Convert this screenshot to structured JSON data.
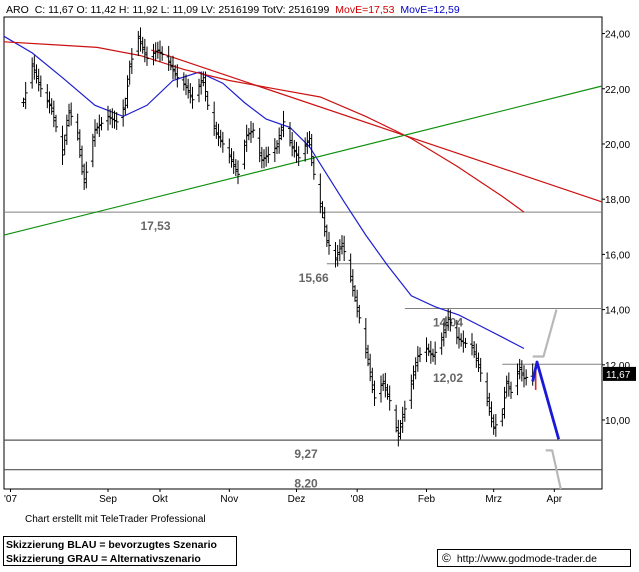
{
  "header": {
    "symbol": "ARO",
    "stats": "C: 11,67 O: 11,42 H: 11,92 L: 11,09 LV: 2516199 TotV: 2516199",
    "ma_long": "MovE=17,53",
    "ma_short": "MovE=12,59",
    "ma_long_color": "#cc0000",
    "ma_short_color": "#0000cc"
  },
  "footer": {
    "credit": "Chart erstellt mit TeleTrader Professional",
    "legend_blue": "Skizzierung BLAU = bevorzugtes Szenario",
    "legend_gray": "Skizzierung GRAU = Alternativszenario",
    "source_symbol": "©",
    "source_url": "http://www.godmode-trader.de"
  },
  "chart_data": {
    "type": "line",
    "title": "ARO",
    "x_ticks": [
      "'07",
      "Sep",
      "Okt",
      "Nov",
      "Dez",
      "'08",
      "Feb",
      "Mrz",
      "Apr"
    ],
    "y_ticks": [
      "10,00",
      "12,00",
      "14,00",
      "16,00",
      "18,00",
      "20,00",
      "22,00",
      "24,00"
    ],
    "ylim": [
      7.5,
      24.6
    ],
    "last_price": 11.67,
    "last_price_label": "11,67",
    "grid": false,
    "price_anchors": [
      [
        "2007-08-02",
        21.5
      ],
      [
        "2007-08-06",
        22.9
      ],
      [
        "2007-08-10",
        22.0
      ],
      [
        "2007-08-15",
        21.3
      ],
      [
        "2007-08-20",
        19.6
      ],
      [
        "2007-08-23",
        21.2
      ],
      [
        "2007-08-27",
        20.4
      ],
      [
        "2007-08-30",
        18.6
      ],
      [
        "2007-09-04",
        20.5
      ],
      [
        "2007-09-10",
        21.0
      ],
      [
        "2007-09-14",
        20.8
      ],
      [
        "2007-09-18",
        21.4
      ],
      [
        "2007-09-20",
        22.8
      ],
      [
        "2007-09-24",
        23.9
      ],
      [
        "2007-09-28",
        23.1
      ],
      [
        "2007-10-03",
        23.4
      ],
      [
        "2007-10-08",
        23.0
      ],
      [
        "2007-10-12",
        22.4
      ],
      [
        "2007-10-16",
        22.1
      ],
      [
        "2007-10-19",
        21.6
      ],
      [
        "2007-10-24",
        22.4
      ],
      [
        "2007-10-26",
        21.4
      ],
      [
        "2007-10-30",
        20.4
      ],
      [
        "2007-11-05",
        19.6
      ],
      [
        "2007-11-09",
        18.9
      ],
      [
        "2007-11-13",
        20.3
      ],
      [
        "2007-11-16",
        20.5
      ],
      [
        "2007-11-20",
        19.4
      ],
      [
        "2007-11-27",
        19.9
      ],
      [
        "2007-11-30",
        20.8
      ],
      [
        "2007-12-04",
        19.9
      ],
      [
        "2007-12-07",
        19.5
      ],
      [
        "2007-12-12",
        20.2
      ],
      [
        "2007-12-14",
        18.9
      ],
      [
        "2007-12-18",
        17.5
      ],
      [
        "2007-12-20",
        16.5
      ],
      [
        "2007-12-24",
        15.8
      ],
      [
        "2007-12-27",
        16.4
      ],
      [
        "2007-12-31",
        15.2
      ],
      [
        "2008-01-04",
        13.7
      ],
      [
        "2008-01-08",
        12.2
      ],
      [
        "2008-01-11",
        10.8
      ],
      [
        "2008-01-15",
        11.4
      ],
      [
        "2008-01-18",
        10.7
      ],
      [
        "2008-01-22",
        9.4
      ],
      [
        "2008-01-24",
        10.1
      ],
      [
        "2008-01-28",
        11.3
      ],
      [
        "2008-01-31",
        12.3
      ],
      [
        "2008-02-04",
        12.6
      ],
      [
        "2008-02-07",
        12.3
      ],
      [
        "2008-02-11",
        12.9
      ],
      [
        "2008-02-14",
        13.7
      ],
      [
        "2008-02-18",
        13.0
      ],
      [
        "2008-02-21",
        12.8
      ],
      [
        "2008-02-25",
        12.7
      ],
      [
        "2008-02-28",
        12.0
      ],
      [
        "2008-03-03",
        10.8
      ],
      [
        "2008-03-06",
        9.7
      ],
      [
        "2008-03-10",
        10.2
      ],
      [
        "2008-03-12",
        11.4
      ],
      [
        "2008-03-14",
        11.0
      ],
      [
        "2008-03-18",
        11.9
      ],
      [
        "2008-03-20",
        11.5
      ],
      [
        "2008-03-24",
        11.67
      ]
    ],
    "series": [
      {
        "name": "MovE=12,59",
        "color": "#1f1fd0",
        "points": [
          [
            "2007-07-24",
            23.9
          ],
          [
            "2007-08-06",
            23.3
          ],
          [
            "2007-08-20",
            22.4
          ],
          [
            "2007-09-04",
            21.4
          ],
          [
            "2007-09-17",
            21.0
          ],
          [
            "2007-09-28",
            21.4
          ],
          [
            "2007-10-10",
            22.3
          ],
          [
            "2007-10-22",
            22.6
          ],
          [
            "2007-11-02",
            22.2
          ],
          [
            "2007-11-12",
            21.5
          ],
          [
            "2007-11-22",
            20.9
          ],
          [
            "2007-12-03",
            20.6
          ],
          [
            "2007-12-12",
            19.9
          ],
          [
            "2007-12-20",
            18.9
          ],
          [
            "2007-12-28",
            17.9
          ],
          [
            "2008-01-07",
            16.7
          ],
          [
            "2008-01-17",
            15.6
          ],
          [
            "2008-01-28",
            14.5
          ],
          [
            "2008-02-08",
            14.1
          ],
          [
            "2008-02-19",
            13.8
          ],
          [
            "2008-02-29",
            13.4
          ],
          [
            "2008-03-10",
            13.0
          ],
          [
            "2008-03-20",
            12.59
          ]
        ]
      },
      {
        "name": "MovE=17,53",
        "color": "#cc1111",
        "points": [
          [
            "2007-07-24",
            23.7
          ],
          [
            "2007-08-15",
            23.6
          ],
          [
            "2007-09-05",
            23.5
          ],
          [
            "2007-09-25",
            23.2
          ],
          [
            "2007-10-15",
            22.7
          ],
          [
            "2007-11-05",
            22.3
          ],
          [
            "2007-11-26",
            22.0
          ],
          [
            "2007-12-17",
            21.7
          ],
          [
            "2008-01-07",
            21.0
          ],
          [
            "2008-01-28",
            20.2
          ],
          [
            "2008-02-18",
            19.2
          ],
          [
            "2008-03-10",
            18.1
          ],
          [
            "2008-03-20",
            17.53
          ]
        ]
      },
      {
        "name": "Trendlinie rot",
        "color": "#cc1111",
        "points": [
          [
            "2007-09-30",
            23.4
          ],
          [
            "2008-04-25",
            17.9
          ]
        ]
      },
      {
        "name": "Trendlinie grün",
        "color": "#109010",
        "points": [
          [
            "2007-07-24",
            16.7
          ],
          [
            "2008-04-25",
            22.1
          ]
        ]
      }
    ],
    "levels": [
      {
        "value": 17.53,
        "label": "17,53",
        "x_label": "2007-09-25",
        "x_start": "2007-07-24"
      },
      {
        "value": 15.66,
        "label": "15,66",
        "x_label": "2007-12-07",
        "x_start": "2007-12-20"
      },
      {
        "value": 14.04,
        "label": "14,04",
        "x_label": "2008-02-07",
        "x_start": "2008-01-25"
      },
      {
        "value": 12.02,
        "label": "12,02",
        "x_label": "2008-02-07",
        "x_start": "2008-03-10"
      },
      {
        "value": 9.27,
        "label": "9,27",
        "x_label": "2007-12-05",
        "x_start": "2007-07-24"
      },
      {
        "value": 8.2,
        "label": "8,20",
        "x_label": "2007-12-05",
        "x_start": "2007-07-24"
      }
    ],
    "scenarios": [
      {
        "name": "bevorzugtes Szenario",
        "color": "#1a1ad6",
        "points": [
          [
            "2008-03-24",
            11.4
          ],
          [
            "2008-03-26",
            12.1
          ],
          [
            "2008-04-05",
            9.3
          ]
        ]
      },
      {
        "name": "Alternativszenario oben",
        "color": "#b8b8b8",
        "points": [
          [
            "2008-03-24",
            12.3
          ],
          [
            "2008-03-29",
            12.3
          ],
          [
            "2008-04-04",
            14.0
          ]
        ]
      },
      {
        "name": "Alternativszenario unten",
        "color": "#b8b8b8",
        "points": [
          [
            "2008-03-30",
            8.9
          ],
          [
            "2008-04-02",
            8.9
          ],
          [
            "2008-04-06",
            7.5
          ]
        ]
      }
    ]
  }
}
